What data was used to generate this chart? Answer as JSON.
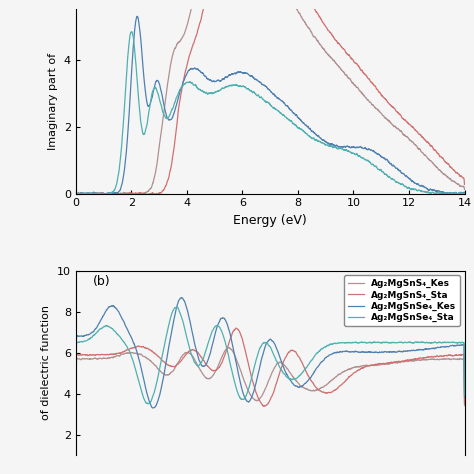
{
  "top_panel": {
    "ylabel": "Imaginary part of",
    "xlabel": "Energy (eV)",
    "xlim": [
      0,
      14
    ],
    "ylim": [
      0,
      5.5
    ],
    "yticks": [
      0,
      2,
      4
    ],
    "xticks": [
      0,
      2,
      4,
      6,
      8,
      10,
      12,
      14
    ]
  },
  "bottom_panel": {
    "ylabel": "of dielectric function",
    "xlim": [
      0,
      14
    ],
    "ylim": [
      1,
      10
    ],
    "yticks": [
      2,
      4,
      6,
      8,
      10
    ],
    "label": "(b)"
  },
  "colors": {
    "Ag2MgSnS4_Kes": "#b09090",
    "Ag2MgSnS4_Sta": "#d07070",
    "Ag2MgSnSe4_Kes": "#5080b0",
    "Ag2MgSnSe4_Sta": "#50b0b0"
  },
  "legend_labels": [
    "Ag₂MgSnS₄_Kes",
    "Ag₂MgSnS₄_Sta",
    "Ag₂MgSnSe₄_Kes",
    "Ag₂MgSnSe₄_Sta"
  ],
  "linewidth": 0.9,
  "bg": "#f5f5f5"
}
